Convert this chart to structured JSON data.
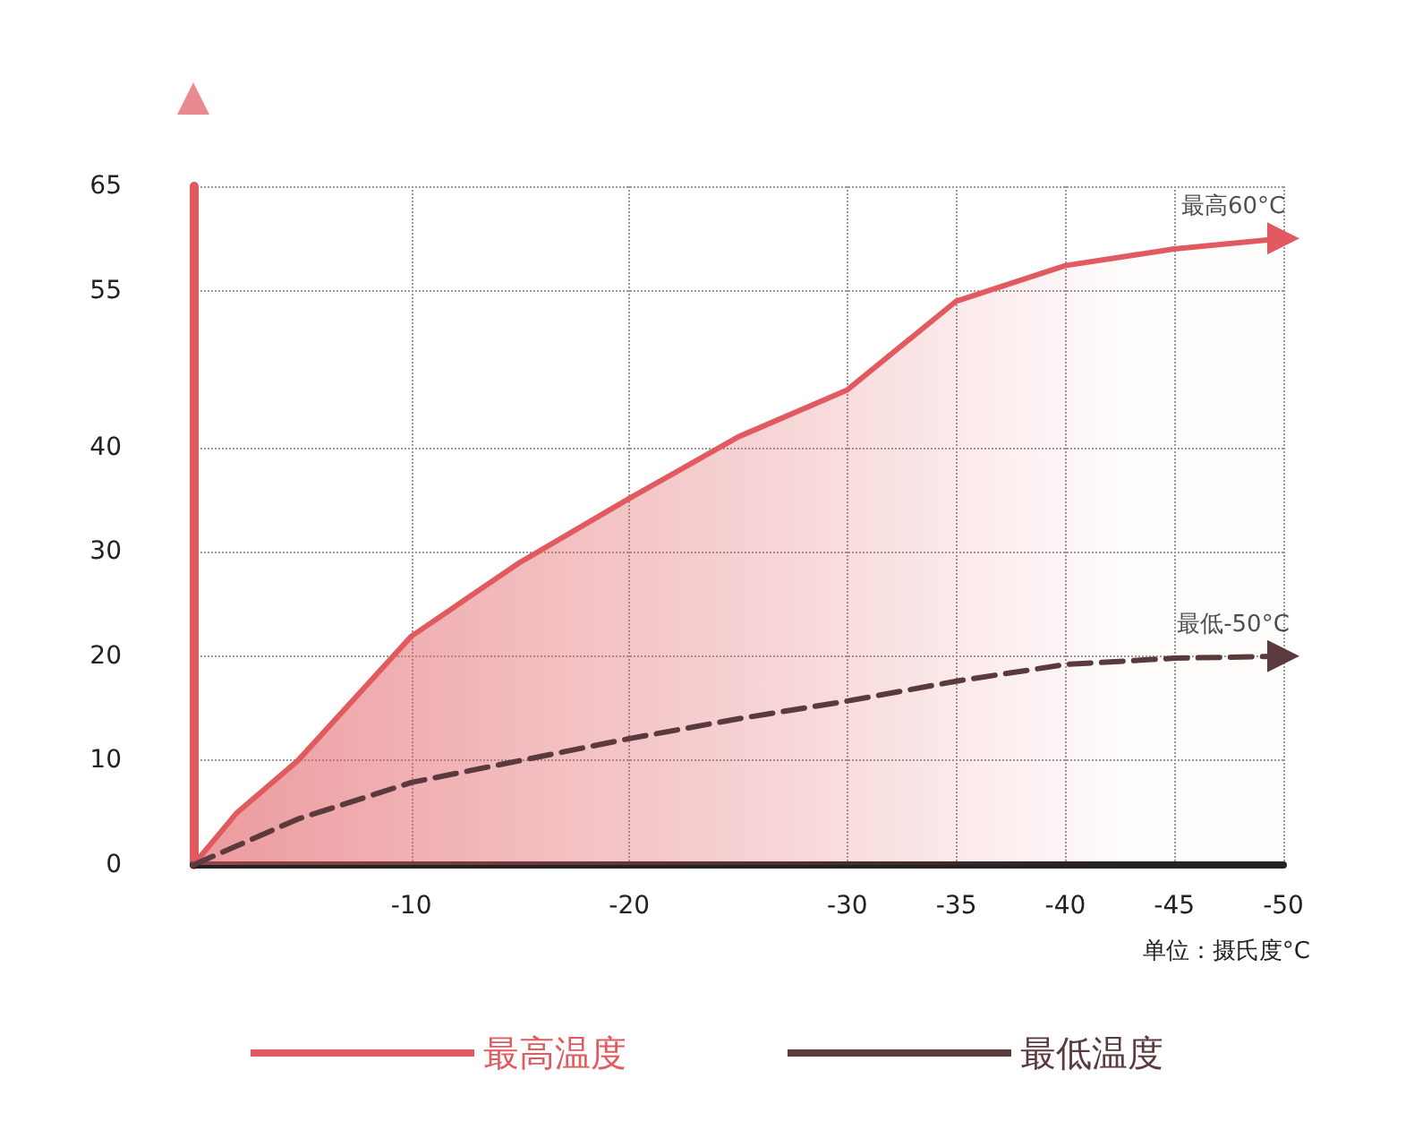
{
  "chart_data": {
    "type": "line",
    "xlim": [
      0,
      -50
    ],
    "xticks": [
      -10,
      -20,
      -30,
      -35,
      -40,
      -45,
      -50
    ],
    "ylim": [
      0,
      65
    ],
    "yticks": [
      0,
      10,
      20,
      30,
      40,
      55,
      65
    ],
    "grid": true,
    "legend": "bottom",
    "marker": "none",
    "series": [
      {
        "name": "最高温度",
        "type": "area",
        "color": "#e05a5f",
        "line_style": "solid",
        "x": [
          0,
          -2,
          -4.8,
          -10,
          -15,
          -20,
          -25,
          -30,
          -35,
          -40,
          -45,
          -50
        ],
        "values": [
          0,
          5,
          10,
          21.9,
          29,
          35.1,
          41,
          45.5,
          54,
          57.4,
          59,
          60
        ]
      },
      {
        "name": "最低温度",
        "type": "line",
        "color": "#5a3a3c",
        "line_style": "dashed",
        "x": [
          0,
          -4.8,
          -10,
          -15,
          -20,
          -25,
          -30,
          -35,
          -40,
          -45,
          -50
        ],
        "values": [
          0,
          4.4,
          7.9,
          10,
          12.1,
          14,
          15.7,
          17.6,
          19.2,
          19.8,
          20
        ]
      }
    ],
    "annotations": [
      {
        "text": "最高60°C",
        "x": -50,
        "y": 60
      },
      {
        "text": "最低-50°C",
        "x": -50,
        "y": 20
      },
      "单位：摄氏度°C"
    ]
  }
}
